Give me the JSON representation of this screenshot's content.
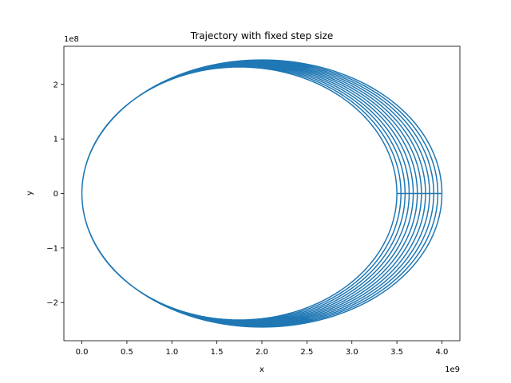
{
  "chart_data": {
    "type": "line",
    "title": "Trajectory with fixed step size",
    "xlabel": "x",
    "ylabel": "y",
    "x_offset_label": "1e9",
    "y_offset_label": "1e8",
    "xlim": [
      -0.2,
      4.2
    ],
    "ylim": [
      -2.7,
      2.7
    ],
    "x_ticks": [
      0.0,
      0.5,
      1.0,
      1.5,
      2.0,
      2.5,
      3.0,
      3.5,
      4.0
    ],
    "x_tick_labels": [
      "0.0",
      "0.5",
      "1.0",
      "1.5",
      "2.0",
      "2.5",
      "3.0",
      "3.5",
      "4.0"
    ],
    "y_ticks": [
      2,
      1,
      0,
      -1,
      -2
    ],
    "y_tick_labels": [
      "2",
      "1",
      "0",
      "−1",
      "−2"
    ],
    "grid": false,
    "legend": "none",
    "series": [
      {
        "color": "#1f77b4",
        "description": "precessing elliptical orbit traced repeatedly; perihelion fixed near x=0, aphelion drifting from x=4.0 down to x=3.5 (units of 1e9); semi-minor amplitude about 2.3 to 2.45 (units of 1e8)",
        "loops": 12,
        "perihelion_x": 0.0,
        "aphelion_x_start": 4.0,
        "aphelion_x_end": 3.5,
        "y_amplitude_start": 2.45,
        "y_amplitude_end": 2.32
      }
    ]
  }
}
